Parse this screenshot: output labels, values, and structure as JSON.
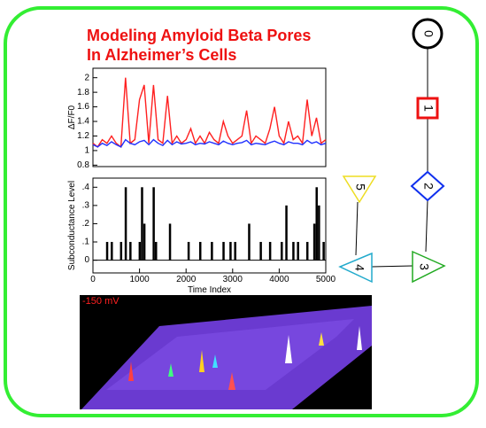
{
  "title": [
    "Modeling Amyloid Beta Pores",
    "In Alzheimer’s Cells"
  ],
  "chart_data": [
    {
      "type": "line",
      "y_label": "ΔF/F0",
      "x": [
        0,
        100,
        200,
        300,
        400,
        500,
        600,
        700,
        800,
        900,
        1000,
        1100,
        1200,
        1300,
        1400,
        1500,
        1600,
        1700,
        1800,
        1900,
        2000,
        2100,
        2200,
        2300,
        2400,
        2500,
        2600,
        2700,
        2800,
        2900,
        3000,
        3100,
        3200,
        3300,
        3400,
        3500,
        3600,
        3700,
        3800,
        3900,
        4000,
        4100,
        4200,
        4300,
        4400,
        4500,
        4600,
        4700,
        4800,
        4900,
        5000
      ],
      "series": [
        {
          "color": "#ff2020",
          "values": [
            1.1,
            1.05,
            1.15,
            1.1,
            1.2,
            1.1,
            1.05,
            2.0,
            1.1,
            1.15,
            1.7,
            1.9,
            1.1,
            1.9,
            1.15,
            1.1,
            1.75,
            1.1,
            1.2,
            1.1,
            1.15,
            1.3,
            1.1,
            1.2,
            1.1,
            1.25,
            1.15,
            1.1,
            1.4,
            1.2,
            1.1,
            1.15,
            1.2,
            1.55,
            1.1,
            1.2,
            1.15,
            1.1,
            1.3,
            1.6,
            1.2,
            1.1,
            1.4,
            1.15,
            1.2,
            1.1,
            1.7,
            1.2,
            1.45,
            1.1,
            1.15
          ]
        },
        {
          "color": "#2030ff",
          "values": [
            1.08,
            1.05,
            1.1,
            1.07,
            1.12,
            1.08,
            1.05,
            1.15,
            1.1,
            1.08,
            1.12,
            1.14,
            1.08,
            1.15,
            1.1,
            1.07,
            1.14,
            1.08,
            1.12,
            1.09,
            1.1,
            1.12,
            1.08,
            1.1,
            1.09,
            1.12,
            1.1,
            1.08,
            1.13,
            1.1,
            1.08,
            1.1,
            1.11,
            1.14,
            1.08,
            1.1,
            1.09,
            1.08,
            1.11,
            1.13,
            1.1,
            1.08,
            1.12,
            1.1,
            1.1,
            1.08,
            1.14,
            1.1,
            1.12,
            1.08,
            1.1
          ]
        }
      ],
      "xlim": [
        0,
        5000
      ],
      "ylim": [
        0.78,
        2.13
      ],
      "yticks": [
        0.8,
        1,
        1.2,
        1.4,
        1.6,
        1.8,
        2
      ]
    },
    {
      "type": "impulse",
      "y_label": "Subconductance Level",
      "x_label": "Time Index",
      "color": "#000000",
      "x": [
        300,
        400,
        600,
        700,
        800,
        1000,
        1050,
        1100,
        1300,
        1350,
        1650,
        2050,
        2300,
        2550,
        2800,
        2950,
        3050,
        3350,
        3600,
        3800,
        4050,
        4150,
        4300,
        4400,
        4600,
        4750,
        4800,
        4850,
        4950
      ],
      "values": [
        0.1,
        0.1,
        0.1,
        0.4,
        0.1,
        0.1,
        0.4,
        0.2,
        0.4,
        0.1,
        0.2,
        0.1,
        0.1,
        0.1,
        0.1,
        0.1,
        0.1,
        0.2,
        0.1,
        0.1,
        0.1,
        0.3,
        0.1,
        0.1,
        0.1,
        0.2,
        0.4,
        0.3,
        0.1
      ],
      "xlim": [
        0,
        5000
      ],
      "ylim": [
        -0.07,
        0.45
      ],
      "xticks": [
        0,
        1000,
        2000,
        3000,
        4000,
        5000
      ],
      "yticks": [
        0,
        {
          "value": 0.1,
          "label": ".1"
        },
        {
          "value": 0.2,
          "label": ".2"
        },
        {
          "value": 0.3,
          "label": ".3"
        },
        {
          "value": 0.4,
          "label": ".4"
        }
      ]
    }
  ],
  "image_label": "-150 mV",
  "diagram": {
    "nodes": [
      {
        "label": "0"
      },
      {
        "label": "1"
      },
      {
        "label": "2"
      },
      {
        "label": "3"
      },
      {
        "label": "4"
      },
      {
        "label": "5"
      }
    ]
  }
}
